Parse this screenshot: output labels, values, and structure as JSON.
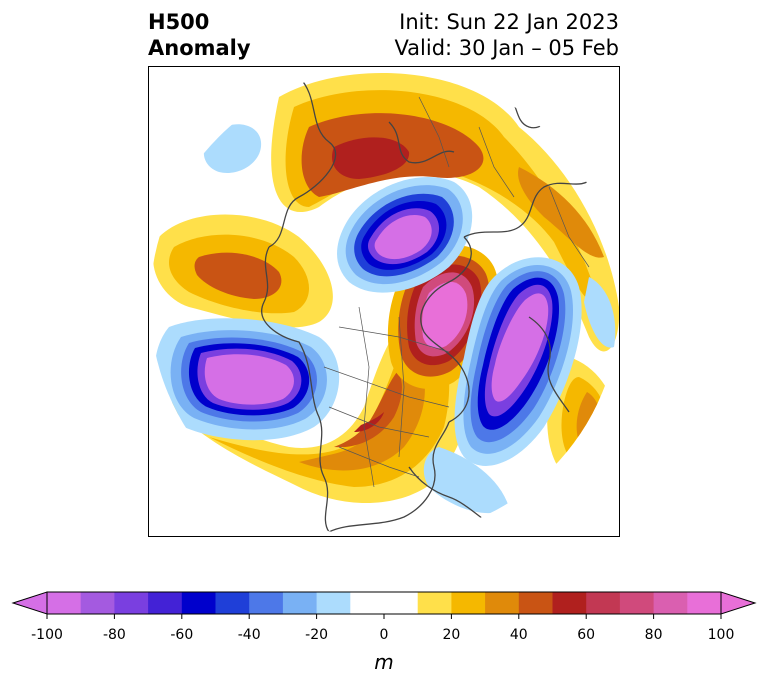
{
  "title": {
    "line1": "H500",
    "line2": "Anomaly"
  },
  "info": {
    "init": "Init: Sun 22 Jan 2023",
    "valid": "Valid: 30 Jan – 05 Feb"
  },
  "colorbar": {
    "unit": "m",
    "ticks": [
      "-100",
      "-80",
      "-60",
      "-40",
      "-20",
      "0",
      "20",
      "40",
      "60",
      "80",
      "100"
    ],
    "levels": [
      -100,
      -90,
      -80,
      -70,
      -60,
      -50,
      -40,
      -30,
      -20,
      -10,
      10,
      20,
      30,
      40,
      50,
      60,
      70,
      80,
      90,
      100
    ],
    "colors": [
      "#d56fe6",
      "#a45ae0",
      "#7a3fe0",
      "#4322d6",
      "#0000cc",
      "#1f3fd8",
      "#4d78e8",
      "#79b1f4",
      "#acdcfd",
      "#ffffff",
      "#ffe04a",
      "#f5b800",
      "#e08a0a",
      "#c95414",
      "#b0201e",
      "#c23853",
      "#d04a7c",
      "#da5fb0",
      "#e86fd8"
    ],
    "under_color": "#d56fe6",
    "over_color": "#e86fd8"
  },
  "map": {
    "projection": "north-polar-stereographic",
    "field": "500 hPa geopotential height anomaly"
  }
}
